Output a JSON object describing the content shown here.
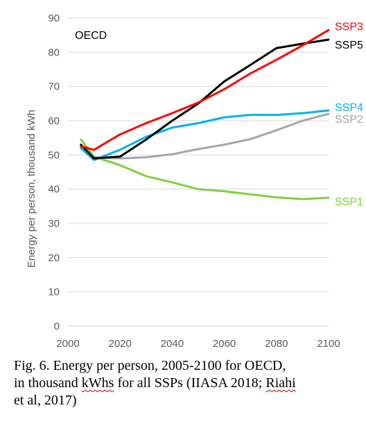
{
  "chart_data": {
    "type": "line",
    "title": "OECD",
    "xlabel": "",
    "ylabel": "Energy per person, thousand kWh",
    "xlim": [
      2000,
      2100
    ],
    "ylim": [
      0,
      90
    ],
    "xticks": [
      2000,
      2020,
      2040,
      2060,
      2080,
      2100
    ],
    "yticks": [
      0,
      10,
      20,
      30,
      40,
      50,
      60,
      70,
      80,
      90
    ],
    "grid": "horizontal",
    "legend": "labels at right end of lines",
    "series": [
      {
        "name": "SSP3",
        "color": "#ff0000",
        "x": [
          2005,
          2010,
          2020,
          2030,
          2040,
          2050,
          2060,
          2070,
          2080,
          2090,
          2100
        ],
        "values": [
          52.5,
          51.5,
          56.0,
          59.3,
          62.2,
          65.3,
          69.2,
          73.8,
          77.8,
          82.0,
          86.5
        ]
      },
      {
        "name": "SSP5",
        "color": "#000000",
        "x": [
          2005,
          2010,
          2020,
          2030,
          2040,
          2050,
          2060,
          2070,
          2080,
          2090,
          2100
        ],
        "values": [
          53.0,
          49.0,
          49.5,
          54.5,
          60.0,
          65.0,
          71.5,
          76.3,
          81.2,
          82.5,
          83.7
        ]
      },
      {
        "name": "SSP4",
        "color": "#00b0f0",
        "x": [
          2005,
          2010,
          2020,
          2030,
          2040,
          2050,
          2060,
          2070,
          2080,
          2090,
          2100
        ],
        "values": [
          52.0,
          48.5,
          51.5,
          55.3,
          58.0,
          59.3,
          61.0,
          61.7,
          61.7,
          62.2,
          63.0
        ]
      },
      {
        "name": "SSP2",
        "color": "#a6a6a6",
        "x": [
          2005,
          2010,
          2020,
          2030,
          2040,
          2050,
          2060,
          2070,
          2080,
          2090,
          2100
        ],
        "values": [
          52.5,
          49.3,
          49.0,
          49.3,
          50.2,
          51.7,
          53.0,
          54.6,
          57.2,
          60.0,
          62.0
        ]
      },
      {
        "name": "SSP1",
        "color": "#7dd13a",
        "x": [
          2005,
          2010,
          2020,
          2030,
          2040,
          2050,
          2060,
          2070,
          2080,
          2090,
          2100
        ],
        "values": [
          54.5,
          49.5,
          47.0,
          43.8,
          42.0,
          40.0,
          39.4,
          38.5,
          37.6,
          37.1,
          37.5
        ]
      }
    ]
  },
  "caption": {
    "line1": "Fig. 6. Energy per person, 2005-2100 for OECD,",
    "line2_before": "in thousand ",
    "line2_underlined": "kWhs",
    "line2_after": " for all SSPs (IIASA 2018; ",
    "line2_underlined2": "Riahi",
    "line3": "et al, 2017)"
  }
}
